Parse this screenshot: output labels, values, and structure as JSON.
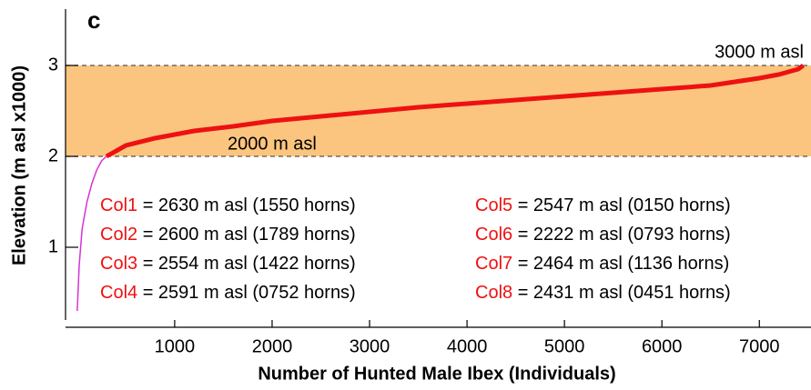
{
  "chart_data": {
    "type": "line",
    "title": "c",
    "x_label": "Number of Hunted Male Ibex (Individuals)",
    "y_label": "Elevation (m asl x1000)",
    "xlim": [
      -120,
      7530
    ],
    "ylim": [
      0.2,
      3.62
    ],
    "xticks": [
      1000,
      2000,
      3000,
      4000,
      5000,
      6000,
      7000
    ],
    "yticks": [
      1,
      2,
      3
    ],
    "band": {
      "from": 2,
      "to": 3,
      "color": "#fbc57f"
    },
    "band_labels": [
      {
        "text": "3000 m asl",
        "x": 7450,
        "y": 3
      },
      {
        "text": "2000 m asl",
        "x": 2000,
        "y": 2
      }
    ],
    "series": [
      {
        "color": "#d633d6",
        "x": [
          0,
          20,
          50,
          100,
          150,
          200,
          250,
          300
        ],
        "values": [
          0.3,
          0.8,
          1.2,
          1.5,
          1.7,
          1.85,
          1.95,
          2.0
        ]
      },
      {
        "color": "#ee1111",
        "x": [
          300,
          500,
          800,
          1200,
          1600,
          2000,
          2500,
          3000,
          3500,
          4000,
          4500,
          5000,
          5500,
          6000,
          6500,
          7000,
          7200,
          7400,
          7450
        ],
        "values": [
          2.0,
          2.12,
          2.2,
          2.28,
          2.33,
          2.39,
          2.44,
          2.49,
          2.54,
          2.58,
          2.62,
          2.66,
          2.7,
          2.74,
          2.78,
          2.86,
          2.9,
          2.96,
          3.0
        ]
      }
    ],
    "annotations": [
      {
        "name": "Col1",
        "text": " = 2630 m asl (1550 horns)"
      },
      {
        "name": "Col2",
        "text": " = 2600 m asl (1789 horns)"
      },
      {
        "name": "Col3",
        "text": " = 2554 m asl (1422 horns)"
      },
      {
        "name": "Col4",
        "text": " = 2591 m asl (0752 horns)"
      },
      {
        "name": "Col5",
        "text": " = 2547 m asl (0150 horns)"
      },
      {
        "name": "Col6",
        "text": " = 2222 m asl (0793 horns)"
      },
      {
        "name": "Col7",
        "text": " = 2464 m asl (1136 horns)"
      },
      {
        "name": "Col8",
        "text": " = 2431 m asl (0451 horns)"
      }
    ]
  }
}
